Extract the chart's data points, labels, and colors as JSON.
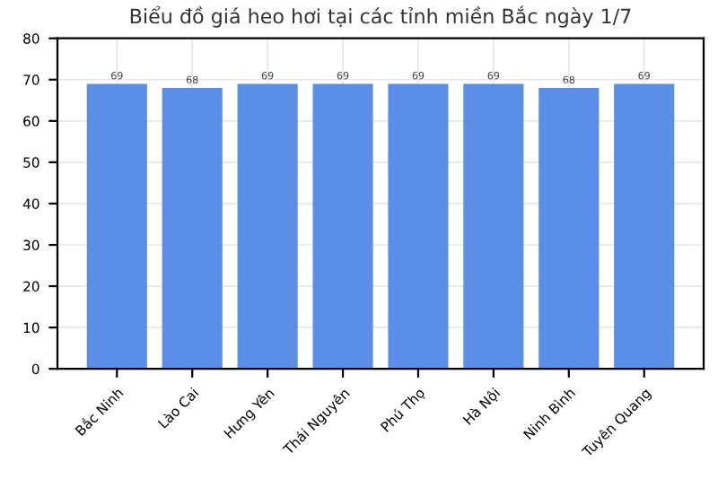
{
  "chart_data": {
    "type": "bar",
    "title": "Biểu đồ giá heo hơi tại các tỉnh miền Bắc ngày 1/7",
    "categories": [
      "Bắc Ninh",
      "Lào Cai",
      "Hưng Yên",
      "Thái Nguyên",
      "Phú Thọ",
      "Hà Nội",
      "Ninh Bình",
      "Tuyên Quang"
    ],
    "values": [
      69,
      68,
      69,
      69,
      69,
      69,
      68,
      69
    ],
    "color": "#5b8ee6",
    "ylim": [
      0,
      80
    ],
    "yticks": [
      0,
      10,
      20,
      30,
      40,
      50,
      60,
      70,
      80
    ],
    "grid": true,
    "data_labels": true
  }
}
